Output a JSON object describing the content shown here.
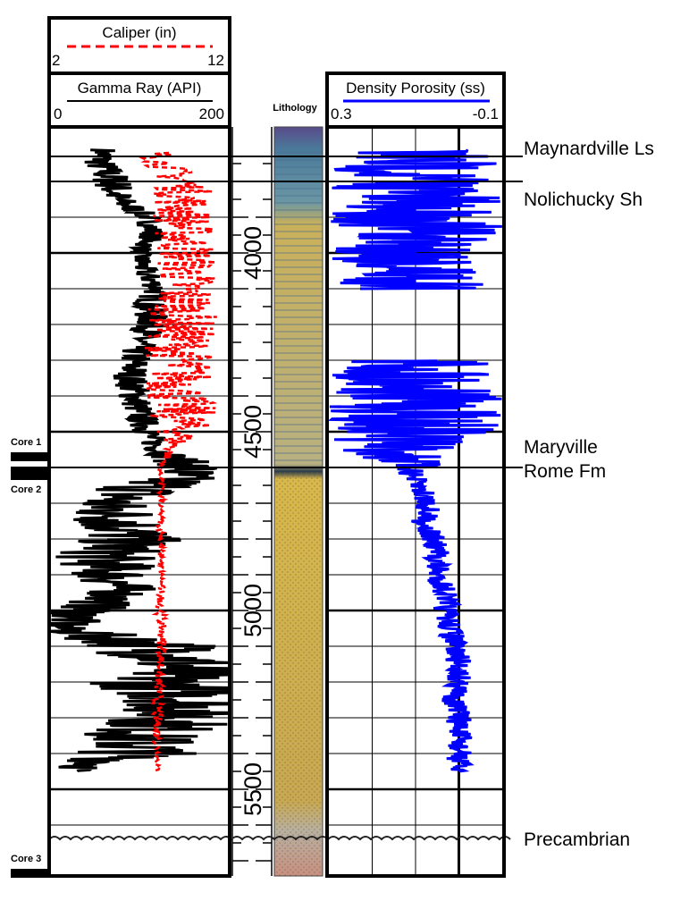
{
  "chart_data": {
    "type": "well-log",
    "headers": {
      "caliper": {
        "title": "Caliper (in)",
        "min": "2",
        "max": "12",
        "range": [
          2,
          12
        ]
      },
      "gamma": {
        "title": "Gamma Ray (API)",
        "min": "0",
        "max": "200",
        "range": [
          0,
          200
        ]
      },
      "lithology": "Lithology",
      "porosity": {
        "title": "Density Porosity (ss)",
        "min": "0.3",
        "max": "-0.1",
        "range": [
          0.3,
          -0.1
        ]
      }
    },
    "depth_range": [
      3700,
      5700
    ],
    "depth_ticks": [
      {
        "label": "4000",
        "value": 4000
      },
      {
        "label": "4500",
        "value": 4500
      },
      {
        "label": "5000",
        "value": 5000
      },
      {
        "label": "5500",
        "value": 5500
      }
    ],
    "formations": [
      {
        "name": "Maynardville Ls",
        "depth": 3720
      },
      {
        "name": "Nolichucky Sh",
        "depth": 3790
      },
      {
        "name": "Maryville",
        "depth": 4540
      },
      {
        "name": "Rome Fm",
        "depth": 4570
      },
      {
        "name": "Precambrian",
        "depth": 5640
      }
    ],
    "cores": [
      {
        "label": "Core 1",
        "depth": 4545
      },
      {
        "label": "Core 2",
        "depth": 4595
      },
      {
        "label": "Core 3",
        "depth": 5690
      }
    ],
    "formation_boundaries": [
      3730,
      3800,
      4600
    ],
    "unconformity_depth": 5640,
    "gamma_ray": {
      "color": "#000000",
      "depths": [
        3710,
        3750,
        3800,
        3850,
        3900,
        3950,
        4000,
        4050,
        4100,
        4150,
        4200,
        4250,
        4300,
        4350,
        4400,
        4450,
        4500,
        4550,
        4600,
        4650,
        4700,
        4750,
        4800,
        4850,
        4900,
        4950,
        5000,
        5050,
        5100,
        5150,
        5200,
        5250,
        5300,
        5350,
        5400,
        5450
      ],
      "values": [
        60,
        55,
        70,
        75,
        110,
        115,
        100,
        105,
        120,
        110,
        115,
        100,
        95,
        90,
        95,
        100,
        110,
        120,
        160,
        120,
        60,
        80,
        90,
        60,
        70,
        80,
        40,
        10,
        120,
        150,
        120,
        160,
        150,
        100,
        100,
        20
      ],
      "amplitudes": [
        15,
        20,
        25,
        20,
        15,
        15,
        12,
        15,
        15,
        20,
        20,
        20,
        20,
        20,
        20,
        18,
        18,
        15,
        40,
        60,
        50,
        60,
        60,
        60,
        50,
        40,
        40,
        30,
        80,
        80,
        80,
        80,
        80,
        70,
        70,
        20
      ]
    },
    "caliper": {
      "color": "#ff0000",
      "depths": [
        3720,
        3750,
        3800,
        3850,
        3900,
        3950,
        4000,
        4050,
        4100,
        4150,
        4200,
        4250,
        4300,
        4350,
        4400,
        4450,
        4500,
        4550,
        4600,
        4700,
        4800,
        4900,
        5000,
        5100,
        5200,
        5300,
        5400,
        5450
      ],
      "values": [
        8,
        8.3,
        9.5,
        9.5,
        9.5,
        9.5,
        9.7,
        9.7,
        9.5,
        9.5,
        9.4,
        9.3,
        9.3,
        9.3,
        9.2,
        9.4,
        9.4,
        8.8,
        8.2,
        8.2,
        8.2,
        8.2,
        8.2,
        8.3,
        8.1,
        8.0,
        8.0,
        8.0
      ],
      "amplitudes": [
        1,
        1,
        1.5,
        1.8,
        1.8,
        1.8,
        1.8,
        1.8,
        2,
        2,
        2,
        2,
        2,
        2,
        2,
        2,
        1.5,
        0.4,
        0.2,
        0.2,
        0.2,
        0.2,
        0.3,
        0.3,
        0.3,
        0.3,
        0.2,
        0.2
      ]
    },
    "density_porosity": {
      "color": "#0000ff",
      "depths": [
        3710,
        3740,
        3780,
        3850,
        3900,
        3950,
        4000,
        4050,
        4100,
        4200,
        4250,
        4300,
        4350,
        4400,
        4450,
        4500,
        4550,
        4600,
        4620,
        4700,
        4750,
        4800,
        4850,
        4900,
        4950,
        5000,
        5050,
        5100,
        5150,
        5200,
        5250,
        5300,
        5350,
        5400,
        5450
      ],
      "values": [
        0.1,
        0.1,
        0.1,
        0.1,
        0.1,
        0.1,
        0.1,
        0.1,
        0.1,
        null,
        null,
        0.1,
        0.1,
        0.1,
        0.1,
        0.1,
        0.15,
        0.1,
        0.11,
        0.07,
        0.08,
        0.06,
        0.05,
        0.05,
        0.03,
        0.03,
        0.02,
        0.01,
        0.0,
        0.0,
        0.01,
        0.0,
        0.0,
        0.0,
        0.0
      ],
      "amplitudes": [
        0.2,
        0.2,
        0.2,
        0.2,
        0.2,
        0.2,
        0.2,
        0.2,
        0.2,
        0,
        0,
        0.2,
        0.2,
        0.2,
        0.2,
        0.2,
        0.15,
        0.05,
        0.03,
        0.03,
        0.03,
        0.03,
        0.03,
        0.03,
        0.03,
        0.03,
        0.03,
        0.03,
        0.03,
        0.03,
        0.03,
        0.03,
        0.03,
        0.03,
        0.03
      ]
    },
    "lithology_colors": {
      "limestone": "#5a4b8a",
      "shale": "#4a7a9a",
      "sandstone": "#d8b84a",
      "precambrian": "#c8a090"
    }
  }
}
